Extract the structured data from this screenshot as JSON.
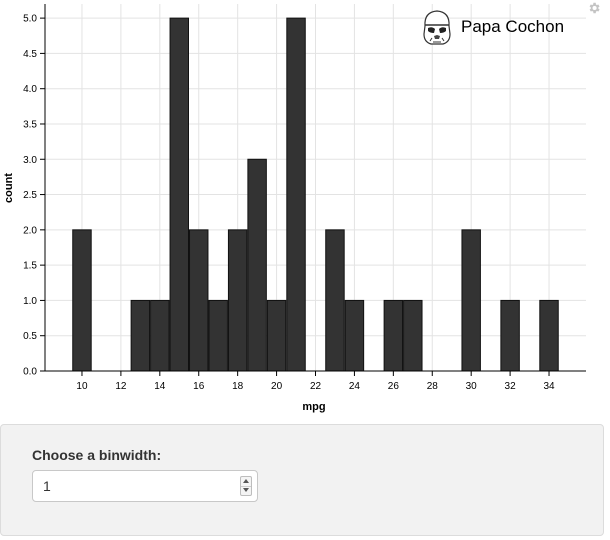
{
  "chart_data": {
    "type": "bar",
    "xlabel": "mpg",
    "ylabel": "count",
    "xlim": [
      8.1,
      35.9
    ],
    "ylim": [
      0,
      5.2
    ],
    "x_ticks": [
      "10",
      "12",
      "14",
      "16",
      "18",
      "20",
      "22",
      "24",
      "26",
      "28",
      "30",
      "32",
      "34"
    ],
    "y_ticks": [
      "0.0",
      "0.5",
      "1.0",
      "1.5",
      "2.0",
      "2.5",
      "3.0",
      "3.5",
      "4.0",
      "4.5",
      "5.0"
    ],
    "binwidth": 1,
    "bins": [
      {
        "x": 10,
        "count": 2
      },
      {
        "x": 13,
        "count": 1
      },
      {
        "x": 14,
        "count": 1
      },
      {
        "x": 15,
        "count": 5
      },
      {
        "x": 16,
        "count": 2
      },
      {
        "x": 17,
        "count": 1
      },
      {
        "x": 18,
        "count": 2
      },
      {
        "x": 19,
        "count": 3
      },
      {
        "x": 20,
        "count": 1
      },
      {
        "x": 21,
        "count": 5
      },
      {
        "x": 23,
        "count": 2
      },
      {
        "x": 24,
        "count": 1
      },
      {
        "x": 26,
        "count": 1
      },
      {
        "x": 27,
        "count": 1
      },
      {
        "x": 30,
        "count": 2
      },
      {
        "x": 32,
        "count": 1
      },
      {
        "x": 34,
        "count": 1
      }
    ],
    "grid": true,
    "bar_color": "#333333"
  },
  "logo": {
    "text": "Papa Cochon",
    "icon": "stormtrooper-icon"
  },
  "settings_icon": "gear-icon",
  "controls": {
    "binwidth_label": "Choose a binwidth:",
    "binwidth_value": "1"
  }
}
